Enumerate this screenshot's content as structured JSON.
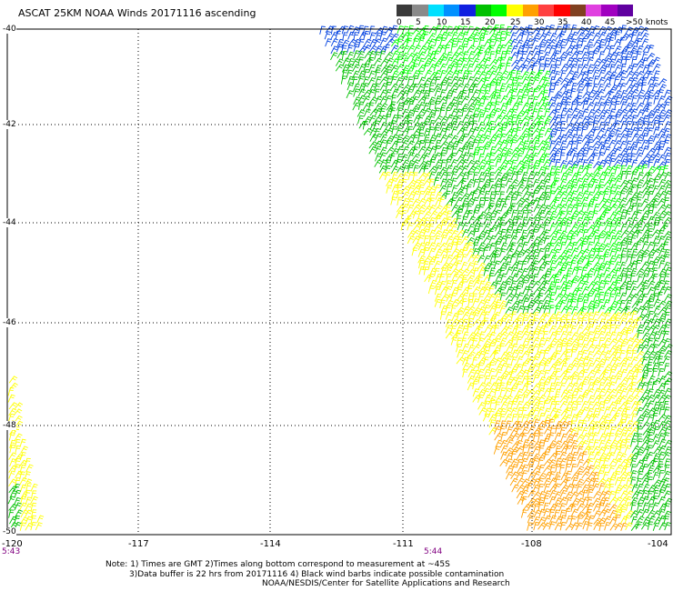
{
  "title": "ASCAT 25KM NOAA Winds 20171116 ascending",
  "legend": {
    "colors": [
      "#3a3a3a",
      "#8a8a8a",
      "#00e0ff",
      "#0090ff",
      "#1020e0",
      "#00c000",
      "#00ff00",
      "#ffff00",
      "#ffa000",
      "#ff4040",
      "#ff0000",
      "#804020",
      "#e040e0",
      "#a000c0",
      "#6000a0"
    ],
    "labels": [
      "0",
      "5",
      "10",
      "15",
      "20",
      "25",
      "30",
      "35",
      "40",
      "45",
      ">50 knots"
    ]
  },
  "axes": {
    "lat_labels": [
      "-40",
      "-42",
      "-44",
      "-46",
      "-48",
      "-50"
    ],
    "lon_labels": [
      "-120",
      "-117",
      "-114",
      "-111",
      "-108",
      "-104"
    ],
    "time_labels": [
      "5:43",
      "5:44"
    ]
  },
  "notes": [
    "Note: 1) Times are GMT 2)Times along bottom correspond to measurement at ~45S",
    "3)Data buffer is 22 hrs from 20171116 4) Black wind barbs indicate possible contamination",
    "NOAA/NESDIS/Center for Satellite Applications and Research"
  ],
  "wind_colors": {
    "lt5": "#3a3a3a",
    "k5": "#8a8a8a",
    "k10": "#00e0ff",
    "k15": "#0040e0",
    "k20": "#00c000",
    "k25": "#00ff00",
    "k30": "#ffff00",
    "k35": "#ffa000"
  }
}
